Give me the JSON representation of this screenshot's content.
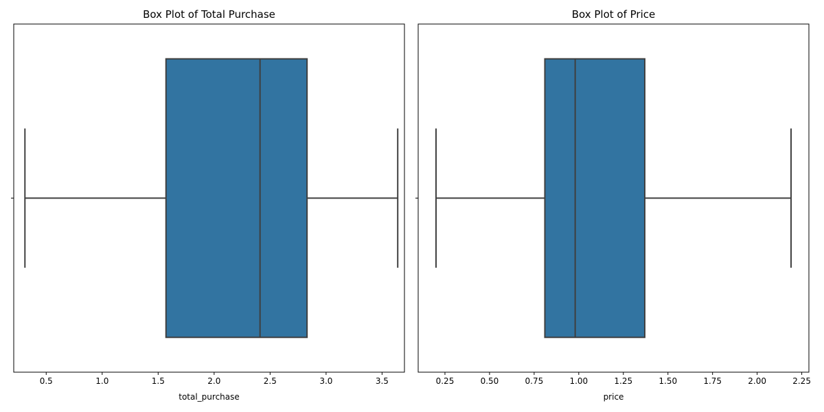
{
  "chart_data": [
    {
      "type": "box",
      "title": "Box Plot of Total Purchase",
      "xlabel": "total_purchase",
      "ylabel": "",
      "xlim": [
        0.21,
        3.7
      ],
      "ticks": [
        0.5,
        1.0,
        1.5,
        2.0,
        2.5,
        3.0,
        3.5
      ],
      "tick_labels": [
        "0.5",
        "1.0",
        "1.5",
        "2.0",
        "2.5",
        "3.0",
        "3.5"
      ],
      "box": {
        "whisker_low": 0.31,
        "q1": 1.57,
        "median": 2.41,
        "q3": 2.83,
        "whisker_high": 3.64
      },
      "box_color": "#3274a1",
      "line_color": "#3f3f3f",
      "grid": false
    },
    {
      "type": "box",
      "title": "Box Plot of Price",
      "xlabel": "price",
      "ylabel": "",
      "xlim": [
        0.1,
        2.29
      ],
      "ticks": [
        0.25,
        0.5,
        0.75,
        1.0,
        1.25,
        1.5,
        1.75,
        2.0,
        2.25
      ],
      "tick_labels": [
        "0.25",
        "0.50",
        "0.75",
        "1.00",
        "1.25",
        "1.50",
        "1.75",
        "2.00",
        "2.25"
      ],
      "box": {
        "whisker_low": 0.2,
        "q1": 0.81,
        "median": 0.98,
        "q3": 1.37,
        "whisker_high": 2.19
      },
      "box_color": "#3274a1",
      "line_color": "#3f3f3f",
      "grid": false
    }
  ]
}
